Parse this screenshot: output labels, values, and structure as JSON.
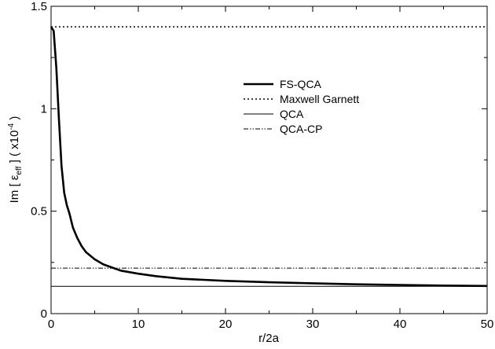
{
  "chart_data": {
    "type": "line",
    "xlabel": "r/2a",
    "ylabel": {
      "prefix": "Im [ ε",
      "subscript": "eff",
      "middle": " ]  ( x10",
      "superscript": "-4",
      "suffix": " )"
    },
    "xlim": [
      0,
      50
    ],
    "ylim": [
      0,
      1.5
    ],
    "x_ticks": [
      0,
      10,
      20,
      30,
      40,
      50
    ],
    "y_ticks": [
      0,
      0.5,
      1,
      1.5
    ],
    "x_tick_labels": [
      "0",
      "10",
      "20",
      "30",
      "40",
      "50"
    ],
    "y_tick_labels": [
      "0",
      "0.5",
      "1",
      "1.5"
    ],
    "grid": false,
    "legend_position": "upper-center",
    "series": [
      {
        "name": "FS-QCA",
        "style": "solid-thick",
        "color": "#000000",
        "x": [
          0,
          0.3,
          0.6,
          0.9,
          1.2,
          1.5,
          1.8,
          2.1,
          2.5,
          3,
          3.5,
          4,
          5,
          6,
          7,
          8,
          10,
          12,
          15,
          20,
          25,
          30,
          35,
          40,
          45,
          50
        ],
        "y": [
          1.4,
          1.38,
          1.2,
          0.95,
          0.72,
          0.59,
          0.53,
          0.49,
          0.42,
          0.37,
          0.33,
          0.3,
          0.265,
          0.24,
          0.225,
          0.21,
          0.195,
          0.183,
          0.17,
          0.16,
          0.153,
          0.148,
          0.143,
          0.14,
          0.137,
          0.135
        ]
      },
      {
        "name": "Maxwell Garnett",
        "style": "dotted",
        "color": "#000000",
        "x": [
          0,
          50
        ],
        "y": [
          1.4,
          1.4
        ]
      },
      {
        "name": "QCA",
        "style": "solid-thin",
        "color": "#000000",
        "x": [
          0,
          50
        ],
        "y": [
          0.133,
          0.133
        ]
      },
      {
        "name": "QCA-CP",
        "style": "dash-dot-dot",
        "color": "#000000",
        "x": [
          0,
          50
        ],
        "y": [
          0.222,
          0.222
        ]
      }
    ]
  }
}
